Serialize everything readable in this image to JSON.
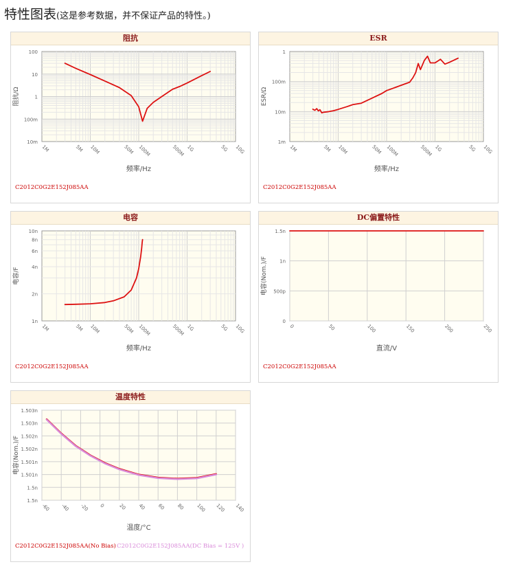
{
  "page": {
    "title": "特性图表",
    "note": "(这是参考数据，并不保证产品的特性。)"
  },
  "colors": {
    "series_red": "#dd1111",
    "series_pink": "#d98ad9",
    "plot_bg": "#fffdf0",
    "grid": "#dddddd"
  },
  "chart_data": [
    {
      "id": "impedance",
      "type": "line",
      "title": "阻抗",
      "xlabel": "频率/Hz",
      "ylabel": "阻抗/Ω",
      "xscale": "log",
      "yscale": "log",
      "xlim": [
        1000000,
        10000000000
      ],
      "ylim": [
        0.01,
        100
      ],
      "xticks": [
        {
          "v": 1000000,
          "label": "1M"
        },
        {
          "v": 5000000,
          "label": "5M"
        },
        {
          "v": 10000000,
          "label": "10M"
        },
        {
          "v": 50000000,
          "label": "50M"
        },
        {
          "v": 100000000,
          "label": "100M"
        },
        {
          "v": 500000000,
          "label": "500M"
        },
        {
          "v": 1000000000,
          "label": "1G"
        },
        {
          "v": 5000000000,
          "label": "5G"
        },
        {
          "v": 10000000000,
          "label": "10G"
        }
      ],
      "yticks": [
        {
          "v": 0.01,
          "label": "10m"
        },
        {
          "v": 0.1,
          "label": "100m"
        },
        {
          "v": 1,
          "label": "1"
        },
        {
          "v": 10,
          "label": "10"
        },
        {
          "v": 100,
          "label": "100"
        }
      ],
      "grid": true,
      "series": [
        {
          "color": "#dd1111",
          "x": [
            3000000,
            5000000,
            10000000,
            20000000,
            40000000,
            70000000,
            100000000,
            120000000,
            150000000,
            200000000,
            300000000,
            500000000,
            700000000,
            1000000000,
            2000000000,
            3000000000
          ],
          "y": [
            30,
            18,
            9.5,
            4.9,
            2.5,
            1.1,
            0.35,
            0.08,
            0.3,
            0.55,
            1.0,
            2.1,
            2.8,
            4,
            8.5,
            13
          ]
        }
      ],
      "part": "C2012C0G2E152J085AA"
    },
    {
      "id": "esr",
      "type": "line",
      "title": "ESR",
      "xlabel": "频率/Hz",
      "ylabel": "ESR/Ω",
      "xscale": "log",
      "yscale": "log",
      "xlim": [
        1000000,
        10000000000
      ],
      "ylim": [
        0.001,
        1
      ],
      "xticks": [
        {
          "v": 1000000,
          "label": "1M"
        },
        {
          "v": 5000000,
          "label": "5M"
        },
        {
          "v": 10000000,
          "label": "10M"
        },
        {
          "v": 50000000,
          "label": "50M"
        },
        {
          "v": 100000000,
          "label": "100M"
        },
        {
          "v": 500000000,
          "label": "500M"
        },
        {
          "v": 1000000000,
          "label": "1G"
        },
        {
          "v": 5000000000,
          "label": "5G"
        },
        {
          "v": 10000000000,
          "label": "10G"
        }
      ],
      "yticks": [
        {
          "v": 0.001,
          "label": "1m"
        },
        {
          "v": 0.01,
          "label": "10m"
        },
        {
          "v": 0.1,
          "label": "100m"
        },
        {
          "v": 1,
          "label": "1"
        }
      ],
      "grid": true,
      "series": [
        {
          "color": "#dd1111",
          "x": [
            3000000,
            3300000,
            3600000,
            3900000,
            4200000,
            4600000,
            5000000,
            6000000,
            8000000,
            10000000,
            15000000,
            20000000,
            30000000,
            50000000,
            80000000,
            100000000,
            150000000,
            200000000,
            300000000,
            350000000,
            400000000,
            450000000,
            500000000,
            600000000,
            700000000,
            800000000,
            1000000000,
            1300000000,
            1600000000,
            2000000000,
            3000000000
          ],
          "y": [
            0.012,
            0.011,
            0.0125,
            0.0105,
            0.0115,
            0.009,
            0.0095,
            0.0098,
            0.0107,
            0.0118,
            0.0145,
            0.017,
            0.019,
            0.028,
            0.04,
            0.05,
            0.063,
            0.075,
            0.095,
            0.135,
            0.2,
            0.4,
            0.25,
            0.5,
            0.7,
            0.42,
            0.42,
            0.55,
            0.38,
            0.44,
            0.6
          ]
        }
      ],
      "part": "C2012C0G2E152J085AA"
    },
    {
      "id": "capacitance",
      "type": "line",
      "title": "电容",
      "xlabel": "频率/Hz",
      "ylabel": "电容/F",
      "xscale": "log",
      "yscale": "log",
      "xlim": [
        1000000,
        10000000000
      ],
      "ylim": [
        1e-09,
        1e-08
      ],
      "xticks": [
        {
          "v": 1000000,
          "label": "1M"
        },
        {
          "v": 5000000,
          "label": "5M"
        },
        {
          "v": 10000000,
          "label": "10M"
        },
        {
          "v": 50000000,
          "label": "50M"
        },
        {
          "v": 100000000,
          "label": "100M"
        },
        {
          "v": 500000000,
          "label": "500M"
        },
        {
          "v": 1000000000,
          "label": "1G"
        },
        {
          "v": 5000000000,
          "label": "5G"
        },
        {
          "v": 10000000000,
          "label": "10G"
        }
      ],
      "yticks": [
        {
          "v": 1e-09,
          "label": "1n"
        },
        {
          "v": 2e-09,
          "label": "2n"
        },
        {
          "v": 4e-09,
          "label": "4n"
        },
        {
          "v": 6e-09,
          "label": "6n"
        },
        {
          "v": 8e-09,
          "label": "8n"
        },
        {
          "v": 1e-08,
          "label": "10n"
        }
      ],
      "grid": true,
      "series": [
        {
          "color": "#dd1111",
          "x": [
            3000000,
            5000000,
            10000000,
            20000000,
            30000000,
            50000000,
            70000000,
            90000000,
            100000000,
            110000000,
            115000000,
            118000000,
            120000000
          ],
          "y": [
            1.52e-09,
            1.53e-09,
            1.55e-09,
            1.6e-09,
            1.67e-09,
            1.85e-09,
            2.2e-09,
            3e-09,
            3.8e-09,
            5.2e-09,
            6.4e-09,
            7.5e-09,
            8e-09
          ]
        }
      ],
      "part": "C2012C0G2E152J085AA"
    },
    {
      "id": "dcbias",
      "type": "line",
      "title": "DC偏置特性",
      "xlabel": "直流/V",
      "ylabel": "电容(Nom.)/F",
      "xscale": "linear",
      "yscale": "linear",
      "xlim": [
        0,
        250
      ],
      "ylim": [
        0,
        1.5e-09
      ],
      "xticks": [
        {
          "v": 0,
          "label": "0"
        },
        {
          "v": 50,
          "label": "50"
        },
        {
          "v": 100,
          "label": "100"
        },
        {
          "v": 150,
          "label": "150"
        },
        {
          "v": 200,
          "label": "200"
        },
        {
          "v": 250,
          "label": "250"
        }
      ],
      "yticks": [
        {
          "v": 0,
          "label": "0"
        },
        {
          "v": 5e-10,
          "label": "500p"
        },
        {
          "v": 1e-09,
          "label": "1n"
        },
        {
          "v": 1.5e-09,
          "label": "1.5n"
        }
      ],
      "grid": true,
      "series": [
        {
          "color": "#dd1111",
          "x": [
            0,
            250
          ],
          "y": [
            1.5e-09,
            1.5e-09
          ]
        }
      ],
      "part": "C2012C0G2E152J085AA"
    },
    {
      "id": "temperature",
      "type": "line",
      "title": "温度特性",
      "xlabel": "温度/°C",
      "ylabel": "电容(Nom.)/F",
      "xscale": "linear",
      "yscale": "linear",
      "xlim": [
        -60,
        140
      ],
      "ylim": [
        1.4995e-09,
        1.503e-09
      ],
      "xticks": [
        {
          "v": -60,
          "label": "-60"
        },
        {
          "v": -40,
          "label": "-40"
        },
        {
          "v": -20,
          "label": "-20"
        },
        {
          "v": 0,
          "label": "0"
        },
        {
          "v": 20,
          "label": "20"
        },
        {
          "v": 40,
          "label": "40"
        },
        {
          "v": 60,
          "label": "60"
        },
        {
          "v": 80,
          "label": "80"
        },
        {
          "v": 100,
          "label": "100"
        },
        {
          "v": 120,
          "label": "120"
        },
        {
          "v": 140,
          "label": "140"
        }
      ],
      "yticks": [
        {
          "v": 1.4995e-09,
          "label": "1.5n"
        },
        {
          "v": 1.5e-09,
          "label": "1.5n"
        },
        {
          "v": 1.5005e-09,
          "label": "1.501n"
        },
        {
          "v": 1.501e-09,
          "label": "1.501n"
        },
        {
          "v": 1.5015e-09,
          "label": "1.502n"
        },
        {
          "v": 1.502e-09,
          "label": "1.502n"
        },
        {
          "v": 1.5025e-09,
          "label": "1.503n"
        },
        {
          "v": 1.503e-09,
          "label": "1.503n"
        }
      ],
      "grid": true,
      "series": [
        {
          "name": "C2012C0G2E152J085AA(No Bias)",
          "color": "#dd1111",
          "x": [
            -55,
            -40,
            -25,
            -10,
            5,
            20,
            40,
            60,
            80,
            100,
            120
          ],
          "y": [
            1.50265e-09,
            1.5021e-09,
            1.50162e-09,
            1.50125e-09,
            1.50095e-09,
            1.50072e-09,
            1.5005e-09,
            1.50038e-09,
            1.50034e-09,
            1.50037e-09,
            1.50052e-09
          ]
        },
        {
          "name": "C2012C0G2E152J085AA(DC Bias = 125V )",
          "color": "#d98ad9",
          "x": [
            -55,
            -40,
            -25,
            -10,
            5,
            20,
            40,
            60,
            80,
            100,
            120
          ],
          "y": [
            1.50263e-09,
            1.50208e-09,
            1.5016e-09,
            1.50123e-09,
            1.50093e-09,
            1.5007e-09,
            1.50048e-09,
            1.50036e-09,
            1.50032e-09,
            1.50035e-09,
            1.5005e-09
          ]
        }
      ]
    }
  ]
}
